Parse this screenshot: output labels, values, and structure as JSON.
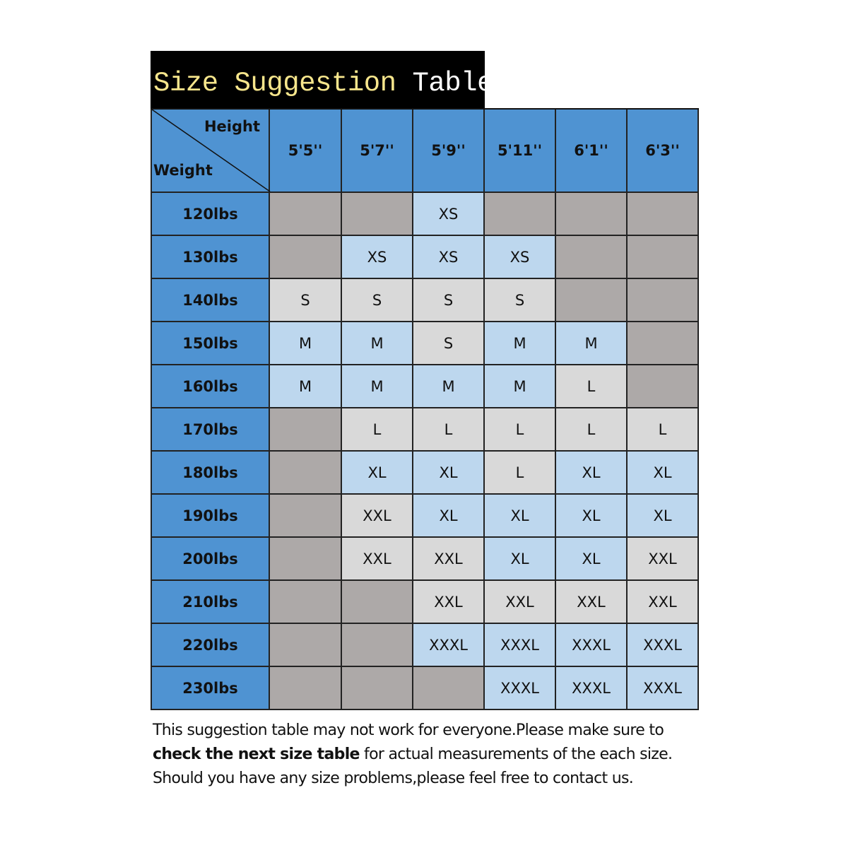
{
  "title": {
    "part1": "Size Suggestion",
    "part2": "Table"
  },
  "corner": {
    "height_label": "Height",
    "weight_label": "Weight"
  },
  "heights": [
    "5'5''",
    "5'7''",
    "5'9''",
    "5'11''",
    "6'1''",
    "6'3''"
  ],
  "rows": [
    {
      "weight": "120lbs",
      "sizes": [
        "",
        "",
        "XS",
        "",
        "",
        ""
      ]
    },
    {
      "weight": "130lbs",
      "sizes": [
        "",
        "XS",
        "XS",
        "XS",
        "",
        ""
      ]
    },
    {
      "weight": "140lbs",
      "sizes": [
        "S",
        "S",
        "S",
        "S",
        "",
        ""
      ]
    },
    {
      "weight": "150lbs",
      "sizes": [
        "M",
        "M",
        "S",
        "M",
        "M",
        ""
      ]
    },
    {
      "weight": "160lbs",
      "sizes": [
        "M",
        "M",
        "M",
        "M",
        "L",
        ""
      ]
    },
    {
      "weight": "170lbs",
      "sizes": [
        "",
        "L",
        "L",
        "L",
        "L",
        "L"
      ]
    },
    {
      "weight": "180lbs",
      "sizes": [
        "",
        "XL",
        "XL",
        "L",
        "XL",
        "XL"
      ]
    },
    {
      "weight": "190lbs",
      "sizes": [
        "",
        "XXL",
        "XL",
        "XL",
        "XL",
        "XL"
      ]
    },
    {
      "weight": "200lbs",
      "sizes": [
        "",
        "XXL",
        "XXL",
        "XL",
        "XL",
        "XXL"
      ]
    },
    {
      "weight": "210lbs",
      "sizes": [
        "",
        "",
        "XXL",
        "XXL",
        "XXL",
        "XXL"
      ]
    },
    {
      "weight": "220lbs",
      "sizes": [
        "",
        "",
        "XXXL",
        "XXXL",
        "XXXL",
        "XXXL"
      ]
    },
    {
      "weight": "230lbs",
      "sizes": [
        "",
        "",
        "",
        "XXXL",
        "XXXL",
        "XXXL"
      ]
    }
  ],
  "colors": {
    "header": "#4f93d2",
    "empty": "#ada9a8",
    "XS": "#bdd7ee",
    "M": "#bdd7ee",
    "XL": "#bdd7ee",
    "XXXL": "#bdd7ee",
    "S": "#d9d9d9",
    "L": "#d9d9d9",
    "XXL": "#d9d9d9"
  },
  "note": {
    "line1": "This suggestion table may not work for everyone.Please make sure to",
    "line2_bold": "check the next size table",
    "line2_rest": " for actual measurements of the each size.",
    "line3": "Should you have any size problems,please feel free to contact us."
  }
}
